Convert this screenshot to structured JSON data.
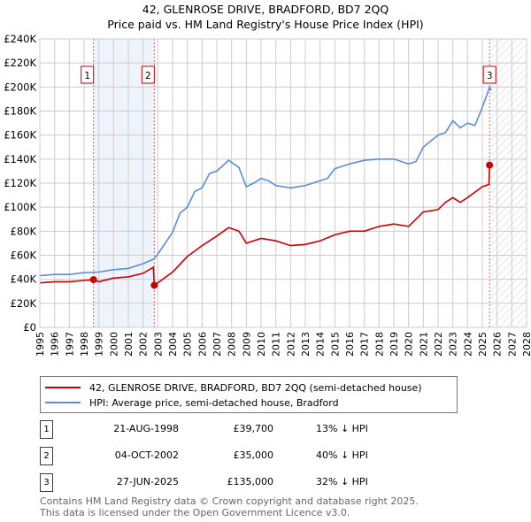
{
  "header": {
    "title": "42, GLENROSE DRIVE, BRADFORD, BD7 2QQ",
    "subtitle": "Price paid vs. HM Land Registry's House Price Index (HPI)"
  },
  "chart_data": {
    "type": "line",
    "title": "42, GLENROSE DRIVE, BRADFORD, BD7 2QQ",
    "subtitle": "Price paid vs. HM Land Registry's House Price Index (HPI)",
    "xlim": [
      1995,
      2028
    ],
    "ylim": [
      0,
      240000
    ],
    "x_ticks": [
      "1995",
      "1996",
      "1997",
      "1998",
      "1999",
      "2000",
      "2001",
      "2002",
      "2003",
      "2004",
      "2005",
      "2006",
      "2007",
      "2008",
      "2009",
      "2010",
      "2011",
      "2012",
      "2013",
      "2014",
      "2015",
      "2016",
      "2017",
      "2018",
      "2019",
      "2020",
      "2021",
      "2022",
      "2023",
      "2024",
      "2025",
      "2026",
      "2027",
      "2028"
    ],
    "y_ticks": [
      "£0",
      "£20K",
      "£40K",
      "£60K",
      "£80K",
      "£100K",
      "£120K",
      "£140K",
      "£160K",
      "£180K",
      "£200K",
      "£220K",
      "£240K"
    ],
    "grid": true,
    "series": [
      {
        "name": "42, GLENROSE DRIVE, BRADFORD, BD7 2QQ (semi-detached house)",
        "color": "#cc0000",
        "x": [
          1995,
          1996,
          1997,
          1998,
          1998.64,
          1999,
          2000,
          2001,
          2002,
          2002.7,
          2002.76,
          2003,
          2004,
          2005,
          2006,
          2007,
          2007.8,
          2008.5,
          2009,
          2010,
          2010.5,
          2011,
          2012,
          2013,
          2014,
          2015,
          2016,
          2017,
          2018,
          2019,
          2020,
          2020.5,
          2021,
          2022,
          2022.5,
          2023,
          2023.5,
          2024,
          2025,
          2025.45,
          2025.49
        ],
        "y": [
          37000,
          38000,
          38000,
          39000,
          39700,
          38000,
          41000,
          42000,
          45000,
          50000,
          35000,
          37000,
          46000,
          59000,
          68000,
          76000,
          83000,
          80000,
          70000,
          74000,
          73000,
          72000,
          68000,
          69000,
          72000,
          77000,
          80000,
          80000,
          84000,
          86000,
          84000,
          90000,
          96000,
          98000,
          104000,
          108000,
          104000,
          108000,
          117000,
          119000,
          135000
        ]
      },
      {
        "name": "HPI: Average price, semi-detached house, Bradford",
        "color": "#5b8fd4",
        "x": [
          1995,
          1996,
          1997,
          1998,
          1999,
          2000,
          2001,
          2002,
          2002.75,
          2003,
          2004,
          2004.5,
          2005,
          2005.5,
          2006,
          2006.5,
          2007,
          2007.8,
          2008.5,
          2009,
          2009.5,
          2010,
          2010.5,
          2011,
          2012,
          2013,
          2014,
          2014.5,
          2015,
          2016,
          2017,
          2018,
          2019,
          2020,
          2020.5,
          2021,
          2022,
          2022.5,
          2023,
          2023.5,
          2024,
          2024.5,
          2025,
          2025.5,
          2025.6
        ],
        "y": [
          43000,
          44000,
          44000,
          45500,
          46000,
          48000,
          49000,
          53000,
          57000,
          61000,
          79000,
          95000,
          100000,
          113000,
          116000,
          128000,
          130000,
          139000,
          133000,
          117000,
          120000,
          124000,
          122000,
          118000,
          116000,
          118000,
          122000,
          124000,
          132000,
          136000,
          139000,
          140000,
          140000,
          136000,
          138000,
          150000,
          160000,
          162000,
          172000,
          166000,
          170000,
          168000,
          183000,
          200000,
          197000
        ]
      }
    ],
    "sales": [
      {
        "label": "1",
        "x": 1998.64,
        "y": 39700
      },
      {
        "label": "2",
        "x": 2002.76,
        "y": 35000
      },
      {
        "label": "3",
        "x": 2025.49,
        "y": 135000
      }
    ],
    "shaded_range": [
      1998.64,
      2002.76
    ],
    "forecast_hatch_from": 2025.49
  },
  "legend": {
    "items": [
      {
        "label": "42, GLENROSE DRIVE, BRADFORD, BD7 2QQ (semi-detached house)",
        "color": "#cc0000"
      },
      {
        "label": "HPI: Average price, semi-detached house, Bradford",
        "color": "#5b8fd4"
      }
    ]
  },
  "transactions": [
    {
      "num": "1",
      "date": "21-AUG-1998",
      "price": "£39,700",
      "diff": "13% ↓ HPI"
    },
    {
      "num": "2",
      "date": "04-OCT-2002",
      "price": "£35,000",
      "diff": "40% ↓ HPI"
    },
    {
      "num": "3",
      "date": "27-JUN-2025",
      "price": "£135,000",
      "diff": "32% ↓ HPI"
    }
  ],
  "footer": {
    "line1": "Contains HM Land Registry data © Crown copyright and database right 2025.",
    "line2": "This data is licensed under the Open Government Licence v3.0."
  }
}
